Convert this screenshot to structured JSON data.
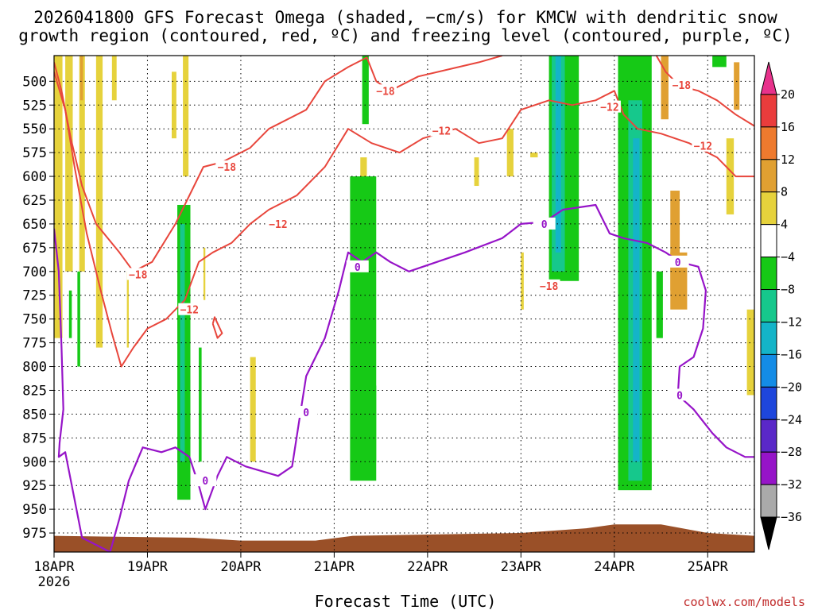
{
  "chart_data": {
    "type": "heatmap",
    "title_line1": "2026041800 GFS Forecast Omega (shaded, −cm/s) for KMCW with dendritic snow",
    "title_line2": "growth region (contoured, red, ºC) and freezing level (contoured, purple, ºC)",
    "xlabel": "Forecast Time (UTC)",
    "credit": "coolwx.com/models",
    "x_range_days": [
      0,
      7.5
    ],
    "y_range_hpa": [
      473,
      995
    ],
    "x_ticks": [
      {
        "label": "18APR",
        "sub": "2026",
        "day": 0
      },
      {
        "label": "19APR",
        "day": 1
      },
      {
        "label": "20APR",
        "day": 2
      },
      {
        "label": "21APR",
        "day": 3
      },
      {
        "label": "22APR",
        "day": 4
      },
      {
        "label": "23APR",
        "day": 5
      },
      {
        "label": "24APR",
        "day": 6
      },
      {
        "label": "25APR",
        "day": 7
      }
    ],
    "y_ticks": [
      500,
      525,
      550,
      575,
      600,
      625,
      650,
      675,
      700,
      725,
      750,
      775,
      800,
      825,
      850,
      875,
      900,
      925,
      950,
      975
    ],
    "colorbar": {
      "labels": [
        "20",
        "16",
        "12",
        "8",
        "4",
        "−4",
        "−8",
        "−12",
        "−16",
        "−20",
        "−24",
        "−28",
        "−32",
        "−36"
      ],
      "bins": [
        {
          "color": "#e8328c"
        },
        {
          "color": "#ea3c3c"
        },
        {
          "color": "#ee7a2e"
        },
        {
          "color": "#e0a032"
        },
        {
          "color": "#e6d23c"
        },
        {
          "color": "#ffffff"
        },
        {
          "color": "#16c916"
        },
        {
          "color": "#16c88c"
        },
        {
          "color": "#14b4c8"
        },
        {
          "color": "#148ce6"
        },
        {
          "color": "#1e46dc"
        },
        {
          "color": "#5a28c8"
        },
        {
          "color": "#9614c8"
        },
        {
          "color": "#aaaaaa"
        },
        {
          "color": "#000000"
        }
      ]
    },
    "omega_regions": [
      {
        "class": "4",
        "t0": 0.0,
        "t1": 0.09,
        "p0": 473,
        "p1": 770
      },
      {
        "class": "4",
        "t0": 0.12,
        "t1": 0.2,
        "p0": 473,
        "p1": 700
      },
      {
        "class": "4",
        "t0": 0.27,
        "t1": 0.33,
        "p0": 473,
        "p1": 700
      },
      {
        "class": "4",
        "t0": 0.45,
        "t1": 0.52,
        "p0": 473,
        "p1": 780
      },
      {
        "class": "4",
        "t0": 0.62,
        "t1": 0.67,
        "p0": 473,
        "p1": 520
      },
      {
        "class": "4",
        "t0": 0.78,
        "t1": 0.8,
        "p0": 700,
        "p1": 780
      },
      {
        "class": "4",
        "t0": 1.26,
        "t1": 1.31,
        "p0": 490,
        "p1": 560
      },
      {
        "class": "4",
        "t0": 1.38,
        "t1": 1.44,
        "p0": 473,
        "p1": 600
      },
      {
        "class": "4",
        "t0": 1.4,
        "t1": 1.45,
        "p0": 740,
        "p1": 830
      },
      {
        "class": "4",
        "t0": 1.6,
        "t1": 1.62,
        "p0": 675,
        "p1": 730
      },
      {
        "class": "4",
        "t0": 2.1,
        "t1": 2.16,
        "p0": 790,
        "p1": 900
      },
      {
        "class": "4",
        "t0": 3.28,
        "t1": 3.35,
        "p0": 580,
        "p1": 640
      },
      {
        "class": "4",
        "t0": 4.5,
        "t1": 4.55,
        "p0": 580,
        "p1": 610
      },
      {
        "class": "4",
        "t0": 4.85,
        "t1": 4.92,
        "p0": 550,
        "p1": 600
      },
      {
        "class": "4",
        "t0": 5.0,
        "t1": 5.03,
        "p0": 680,
        "p1": 740
      },
      {
        "class": "4",
        "t0": 7.2,
        "t1": 7.28,
        "p0": 560,
        "p1": 640
      },
      {
        "class": "4",
        "t0": 7.42,
        "t1": 7.5,
        "p0": 740,
        "p1": 830
      },
      {
        "class": "4",
        "t0": 6.25,
        "t1": 6.3,
        "p0": 575,
        "p1": 600
      },
      {
        "class": "4",
        "t0": 5.1,
        "t1": 5.18,
        "p0": 575,
        "p1": 580
      },
      {
        "class": "8",
        "t0": 0.28,
        "t1": 0.31,
        "p0": 473,
        "p1": 520
      },
      {
        "class": "8",
        "t0": 6.5,
        "t1": 6.58,
        "p0": 473,
        "p1": 540
      },
      {
        "class": "8",
        "t0": 6.6,
        "t1": 6.7,
        "p0": 615,
        "p1": 720
      },
      {
        "class": "8",
        "t0": 6.6,
        "t1": 6.78,
        "p0": 680,
        "p1": 740
      },
      {
        "class": "8",
        "t0": 7.28,
        "t1": 7.34,
        "p0": 480,
        "p1": 530
      },
      {
        "class": "-4",
        "t0": 0.25,
        "t1": 0.28,
        "p0": 700,
        "p1": 800
      },
      {
        "class": "-4",
        "t0": 0.16,
        "t1": 0.19,
        "p0": 720,
        "p1": 770
      },
      {
        "class": "-4",
        "t0": 1.32,
        "t1": 1.46,
        "p0": 630,
        "p1": 940
      },
      {
        "class": "-4",
        "t0": 1.55,
        "t1": 1.58,
        "p0": 780,
        "p1": 900
      },
      {
        "class": "-4",
        "t0": 3.17,
        "t1": 3.45,
        "p0": 600,
        "p1": 920
      },
      {
        "class": "-4",
        "t0": 3.3,
        "t1": 3.37,
        "p0": 473,
        "p1": 545
      },
      {
        "class": "-4",
        "t0": 3.35,
        "t1": 3.45,
        "p0": 820,
        "p1": 900
      },
      {
        "class": "-4",
        "t0": 5.3,
        "t1": 5.62,
        "p0": 473,
        "p1": 710
      },
      {
        "class": "-4",
        "t0": 6.04,
        "t1": 6.4,
        "p0": 473,
        "p1": 930
      },
      {
        "class": "-4",
        "t0": 6.2,
        "t1": 6.4,
        "p0": 900,
        "p1": 920
      },
      {
        "class": "-4",
        "t0": 6.45,
        "t1": 6.52,
        "p0": 700,
        "p1": 770
      },
      {
        "class": "-4",
        "t0": 7.05,
        "t1": 7.2,
        "p0": 473,
        "p1": 485
      },
      {
        "class": "-8",
        "t0": 1.35,
        "t1": 1.4,
        "p0": 650,
        "p1": 900
      },
      {
        "class": "-8",
        "t0": 5.33,
        "t1": 5.47,
        "p0": 473,
        "p1": 700
      },
      {
        "class": "-8",
        "t0": 6.15,
        "t1": 6.3,
        "p0": 520,
        "p1": 920
      },
      {
        "class": "-12",
        "t0": 5.37,
        "t1": 5.43,
        "p0": 473,
        "p1": 680
      },
      {
        "class": "-12",
        "t0": 6.2,
        "t1": 6.27,
        "p0": 560,
        "p1": 900
      }
    ],
    "terrain": {
      "color": "#9a5028",
      "top_hpa": [
        {
          "t": 0.0,
          "p": 978
        },
        {
          "t": 1.5,
          "p": 980
        },
        {
          "t": 2.0,
          "p": 983
        },
        {
          "t": 2.8,
          "p": 983
        },
        {
          "t": 3.2,
          "p": 978
        },
        {
          "t": 5.0,
          "p": 975
        },
        {
          "t": 5.7,
          "p": 970
        },
        {
          "t": 6.0,
          "p": 966
        },
        {
          "t": 6.5,
          "p": 966
        },
        {
          "t": 7.0,
          "p": 975
        },
        {
          "t": 7.5,
          "p": 978
        }
      ]
    },
    "dgz_contours": [
      {
        "name": "-18",
        "color": "#e8463c",
        "label_value": "−18",
        "labels_at": [
          {
            "t": 0.9,
            "p": 703
          },
          {
            "t": 1.85,
            "p": 590
          },
          {
            "t": 3.55,
            "p": 510
          },
          {
            "t": 6.72,
            "p": 504
          },
          {
            "t": 5.3,
            "p": 715
          }
        ],
        "points": [
          {
            "t": 0.0,
            "p": 480
          },
          {
            "t": 0.08,
            "p": 510
          },
          {
            "t": 0.18,
            "p": 560
          },
          {
            "t": 0.3,
            "p": 610
          },
          {
            "t": 0.45,
            "p": 650
          },
          {
            "t": 0.7,
            "p": 680
          },
          {
            "t": 0.85,
            "p": 700
          },
          {
            "t": 1.05,
            "p": 690
          },
          {
            "t": 1.3,
            "p": 650
          },
          {
            "t": 1.45,
            "p": 620
          },
          {
            "t": 1.6,
            "p": 590
          },
          {
            "t": 1.8,
            "p": 585
          },
          {
            "t": 2.1,
            "p": 570
          },
          {
            "t": 2.3,
            "p": 550
          },
          {
            "t": 2.7,
            "p": 530
          },
          {
            "t": 2.9,
            "p": 500
          },
          {
            "t": 3.15,
            "p": 485
          },
          {
            "t": 3.35,
            "p": 475
          },
          {
            "t": 3.45,
            "p": 500
          },
          {
            "t": 3.6,
            "p": 510
          },
          {
            "t": 3.9,
            "p": 495
          },
          {
            "t": 4.2,
            "p": 488
          },
          {
            "t": 4.55,
            "p": 480
          },
          {
            "t": 4.8,
            "p": 473
          }
        ]
      },
      {
        "name": "-18b",
        "color": "#e8463c",
        "label_value": "",
        "labels_at": [],
        "points": [
          {
            "t": 6.45,
            "p": 473
          },
          {
            "t": 6.55,
            "p": 490
          },
          {
            "t": 6.7,
            "p": 505
          },
          {
            "t": 6.9,
            "p": 510
          },
          {
            "t": 7.1,
            "p": 520
          },
          {
            "t": 7.3,
            "p": 535
          },
          {
            "t": 7.5,
            "p": 547
          }
        ]
      },
      {
        "name": "-12",
        "color": "#e8463c",
        "label_value": "−12",
        "labels_at": [
          {
            "t": 1.45,
            "p": 740
          },
          {
            "t": 2.4,
            "p": 650
          },
          {
            "t": 4.15,
            "p": 552
          },
          {
            "t": 5.95,
            "p": 527
          },
          {
            "t": 6.95,
            "p": 568
          }
        ],
        "points": [
          {
            "t": 0.0,
            "p": 490
          },
          {
            "t": 0.12,
            "p": 530
          },
          {
            "t": 0.22,
            "p": 590
          },
          {
            "t": 0.35,
            "p": 660
          },
          {
            "t": 0.5,
            "p": 720
          },
          {
            "t": 0.62,
            "p": 765
          },
          {
            "t": 0.72,
            "p": 800
          },
          {
            "t": 0.85,
            "p": 780
          },
          {
            "t": 1.0,
            "p": 760
          },
          {
            "t": 1.2,
            "p": 750
          },
          {
            "t": 1.4,
            "p": 730
          },
          {
            "t": 1.55,
            "p": 690
          },
          {
            "t": 1.7,
            "p": 680
          },
          {
            "t": 1.9,
            "p": 670
          },
          {
            "t": 2.1,
            "p": 650
          },
          {
            "t": 2.3,
            "p": 635
          },
          {
            "t": 2.6,
            "p": 620
          },
          {
            "t": 2.9,
            "p": 590
          },
          {
            "t": 3.15,
            "p": 550
          },
          {
            "t": 3.4,
            "p": 565
          },
          {
            "t": 3.7,
            "p": 575
          },
          {
            "t": 3.95,
            "p": 560
          },
          {
            "t": 4.3,
            "p": 550
          },
          {
            "t": 4.55,
            "p": 565
          },
          {
            "t": 4.8,
            "p": 560
          },
          {
            "t": 5.0,
            "p": 530
          },
          {
            "t": 5.3,
            "p": 520
          },
          {
            "t": 5.55,
            "p": 525
          },
          {
            "t": 5.8,
            "p": 520
          },
          {
            "t": 6.0,
            "p": 510
          },
          {
            "t": 6.1,
            "p": 535
          },
          {
            "t": 6.25,
            "p": 550
          },
          {
            "t": 6.5,
            "p": 555
          },
          {
            "t": 6.8,
            "p": 565
          },
          {
            "t": 7.1,
            "p": 580
          },
          {
            "t": 7.3,
            "p": 600
          },
          {
            "t": 7.5,
            "p": 600
          }
        ]
      },
      {
        "name": "-12b",
        "color": "#e8463c",
        "label_value": "",
        "labels_at": [],
        "points": [
          {
            "t": 1.7,
            "p": 755
          },
          {
            "t": 1.75,
            "p": 770
          },
          {
            "t": 1.8,
            "p": 765
          },
          {
            "t": 1.72,
            "p": 748
          },
          {
            "t": 1.7,
            "p": 755
          }
        ]
      }
    ],
    "freezing_contour": {
      "name": "0",
      "color": "#9614c8",
      "label_value": "0",
      "labels_at": [
        {
          "t": 1.62,
          "p": 920
        },
        {
          "t": 2.7,
          "p": 848
        },
        {
          "t": 3.25,
          "p": 695
        },
        {
          "t": 5.25,
          "p": 650
        },
        {
          "t": 6.68,
          "p": 690
        },
        {
          "t": 6.7,
          "p": 830
        }
      ],
      "points": [
        {
          "t": 0.0,
          "p": 655
        },
        {
          "t": 0.05,
          "p": 700
        },
        {
          "t": 0.08,
          "p": 780
        },
        {
          "t": 0.1,
          "p": 845
        },
        {
          "t": 0.06,
          "p": 880
        },
        {
          "t": 0.05,
          "p": 895
        },
        {
          "t": 0.12,
          "p": 890
        },
        {
          "t": 0.2,
          "p": 930
        },
        {
          "t": 0.3,
          "p": 980
        },
        {
          "t": 0.6,
          "p": 995
        },
        {
          "t": 0.7,
          "p": 960
        },
        {
          "t": 0.8,
          "p": 920
        },
        {
          "t": 0.95,
          "p": 885
        },
        {
          "t": 1.15,
          "p": 890
        },
        {
          "t": 1.3,
          "p": 885
        },
        {
          "t": 1.45,
          "p": 895
        },
        {
          "t": 1.55,
          "p": 925
        },
        {
          "t": 1.62,
          "p": 950
        },
        {
          "t": 1.75,
          "p": 915
        },
        {
          "t": 1.85,
          "p": 895
        },
        {
          "t": 2.05,
          "p": 905
        },
        {
          "t": 2.4,
          "p": 915
        },
        {
          "t": 2.55,
          "p": 905
        },
        {
          "t": 2.62,
          "p": 860
        },
        {
          "t": 2.7,
          "p": 810
        },
        {
          "t": 2.9,
          "p": 770
        },
        {
          "t": 3.05,
          "p": 720
        },
        {
          "t": 3.15,
          "p": 680
        },
        {
          "t": 3.3,
          "p": 690
        },
        {
          "t": 3.45,
          "p": 680
        },
        {
          "t": 3.6,
          "p": 690
        },
        {
          "t": 3.8,
          "p": 700
        },
        {
          "t": 4.1,
          "p": 690
        },
        {
          "t": 4.4,
          "p": 680
        },
        {
          "t": 4.8,
          "p": 665
        },
        {
          "t": 5.0,
          "p": 650
        },
        {
          "t": 5.25,
          "p": 648
        },
        {
          "t": 5.45,
          "p": 635
        },
        {
          "t": 5.8,
          "p": 630
        },
        {
          "t": 5.95,
          "p": 660
        },
        {
          "t": 6.1,
          "p": 665
        },
        {
          "t": 6.35,
          "p": 670
        },
        {
          "t": 6.55,
          "p": 680
        },
        {
          "t": 6.7,
          "p": 690
        },
        {
          "t": 6.9,
          "p": 695
        },
        {
          "t": 6.98,
          "p": 720
        },
        {
          "t": 6.95,
          "p": 760
        },
        {
          "t": 6.85,
          "p": 790
        },
        {
          "t": 6.7,
          "p": 800
        },
        {
          "t": 6.68,
          "p": 830
        },
        {
          "t": 6.85,
          "p": 845
        },
        {
          "t": 7.05,
          "p": 870
        },
        {
          "t": 7.2,
          "p": 885
        },
        {
          "t": 7.4,
          "p": 895
        },
        {
          "t": 7.5,
          "p": 895
        }
      ]
    }
  }
}
